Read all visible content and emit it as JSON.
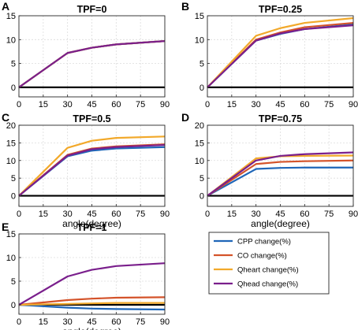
{
  "colors": {
    "CPP": "#1f66b8",
    "CO": "#d4532a",
    "Qheart": "#f2a92b",
    "Qhead": "#7a1f8c",
    "grid": "#dcdcdc",
    "axis": "#262626"
  },
  "chart_data": [
    {
      "type": "line",
      "panel": "A",
      "title": "TPF=0",
      "xlabel": "",
      "x": [
        0,
        30,
        45,
        60,
        90
      ],
      "xticks": [
        "0",
        "15",
        "30",
        "45",
        "60",
        "75",
        "90"
      ],
      "xlim": [
        0,
        90
      ],
      "ylim": [
        -2,
        15
      ],
      "yticks": [
        "0",
        "5",
        "10",
        "15"
      ],
      "series": [
        {
          "name": "CPP",
          "values": [
            0,
            7.2,
            8.3,
            9.0,
            9.7
          ]
        },
        {
          "name": "CO",
          "values": [
            0,
            7.2,
            8.3,
            9.0,
            9.7
          ]
        },
        {
          "name": "Qheart",
          "values": [
            0,
            7.2,
            8.3,
            9.0,
            9.7
          ]
        },
        {
          "name": "Qhead",
          "values": [
            0,
            7.2,
            8.3,
            9.0,
            9.7
          ]
        }
      ]
    },
    {
      "type": "line",
      "panel": "B",
      "title": "TPF=0.25",
      "xlabel": "",
      "x": [
        0,
        30,
        45,
        60,
        90
      ],
      "xticks": [
        "0",
        "15",
        "30",
        "45",
        "60",
        "75",
        "90"
      ],
      "xlim": [
        0,
        90
      ],
      "ylim": [
        -2,
        15
      ],
      "yticks": [
        "0",
        "5",
        "10",
        "15"
      ],
      "series": [
        {
          "name": "CPP",
          "values": [
            0,
            9.8,
            11.2,
            12.2,
            13.2
          ]
        },
        {
          "name": "CO",
          "values": [
            0,
            10.0,
            11.5,
            12.6,
            13.5
          ]
        },
        {
          "name": "Qheart",
          "values": [
            0,
            10.8,
            12.4,
            13.5,
            14.5
          ]
        },
        {
          "name": "Qhead",
          "values": [
            0,
            9.8,
            11.3,
            12.2,
            13.0
          ]
        }
      ]
    },
    {
      "type": "line",
      "panel": "C",
      "title": "TPF=0.5",
      "xlabel": "angle(degree)",
      "x": [
        0,
        30,
        45,
        60,
        90
      ],
      "xticks": [
        "0",
        "15",
        "30",
        "45",
        "60",
        "75",
        "90"
      ],
      "xlim": [
        0,
        90
      ],
      "ylim": [
        -3,
        20
      ],
      "yticks": [
        "0",
        "5",
        "10",
        "15",
        "20"
      ],
      "series": [
        {
          "name": "CPP",
          "values": [
            0,
            11.2,
            12.8,
            13.4,
            13.8
          ]
        },
        {
          "name": "CO",
          "values": [
            0,
            11.6,
            13.4,
            14.0,
            14.6
          ]
        },
        {
          "name": "Qheart",
          "values": [
            0,
            13.6,
            15.6,
            16.4,
            16.8
          ]
        },
        {
          "name": "Qhead",
          "values": [
            0,
            11.4,
            13.2,
            13.8,
            14.4
          ]
        }
      ]
    },
    {
      "type": "line",
      "panel": "D",
      "title": "TPF=0.75",
      "xlabel": "angle(degree)",
      "x": [
        0,
        30,
        45,
        60,
        90
      ],
      "xticks": [
        "0",
        "15",
        "30",
        "45",
        "60",
        "75",
        "90"
      ],
      "xlim": [
        0,
        90
      ],
      "ylim": [
        -3,
        20
      ],
      "yticks": [
        "0",
        "5",
        "10",
        "15",
        "20"
      ],
      "series": [
        {
          "name": "CPP",
          "values": [
            0,
            7.6,
            7.9,
            8.0,
            8.0
          ]
        },
        {
          "name": "CO",
          "values": [
            0,
            9.0,
            9.6,
            9.8,
            10.0
          ]
        },
        {
          "name": "Qheart",
          "values": [
            0,
            10.6,
            11.2,
            11.3,
            11.4
          ]
        },
        {
          "name": "Qhead",
          "values": [
            0,
            10.0,
            11.3,
            11.8,
            12.3
          ]
        }
      ]
    },
    {
      "type": "line",
      "panel": "E",
      "title": "TPF=1",
      "xlabel": "angle(degree)",
      "x": [
        0,
        30,
        45,
        60,
        90
      ],
      "xticks": [
        "0",
        "15",
        "30",
        "45",
        "60",
        "75",
        "90"
      ],
      "xlim": [
        0,
        90
      ],
      "ylim": [
        -2,
        15
      ],
      "yticks": [
        "0",
        "5",
        "10",
        "15"
      ],
      "series": [
        {
          "name": "CPP",
          "values": [
            0,
            -0.6,
            -0.8,
            -0.9,
            -1.0
          ]
        },
        {
          "name": "CO",
          "values": [
            0,
            1.0,
            1.3,
            1.5,
            1.6
          ]
        },
        {
          "name": "Qheart",
          "values": [
            0,
            0.2,
            0.3,
            0.4,
            0.4
          ]
        },
        {
          "name": "Qhead",
          "values": [
            0,
            6.0,
            7.4,
            8.2,
            8.8
          ]
        }
      ]
    }
  ],
  "legend": [
    {
      "key": "CPP",
      "label": "CPP change(%)"
    },
    {
      "key": "CO",
      "label": "CO change(%)"
    },
    {
      "key": "Qheart",
      "label": "Qheart change(%)"
    },
    {
      "key": "Qhead",
      "label": "Qhead change(%)"
    }
  ]
}
